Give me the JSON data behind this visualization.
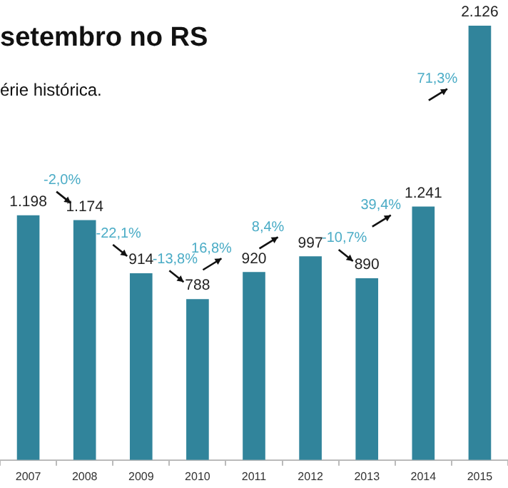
{
  "chart_data": {
    "type": "bar",
    "title": "setembro no RS",
    "subtitle": "érie histórica.",
    "categories": [
      "2007",
      "2008",
      "2009",
      "2010",
      "2011",
      "2012",
      "2013",
      "2014",
      "2015"
    ],
    "values": [
      1198,
      1174,
      914,
      788,
      920,
      997,
      890,
      1241,
      2126
    ],
    "value_labels": [
      "1.198",
      "1.174",
      "914",
      "788",
      "920",
      "997",
      "890",
      "1.241",
      "2.126"
    ],
    "color": "#31849b",
    "grid": false,
    "legend": false,
    "tick_labels": "x",
    "annotations": [
      "-2,0%",
      "-22,1%",
      "-13,8%",
      "16,8%",
      "8,4%",
      "-10,7%",
      "39,4%",
      "71,3%"
    ]
  }
}
